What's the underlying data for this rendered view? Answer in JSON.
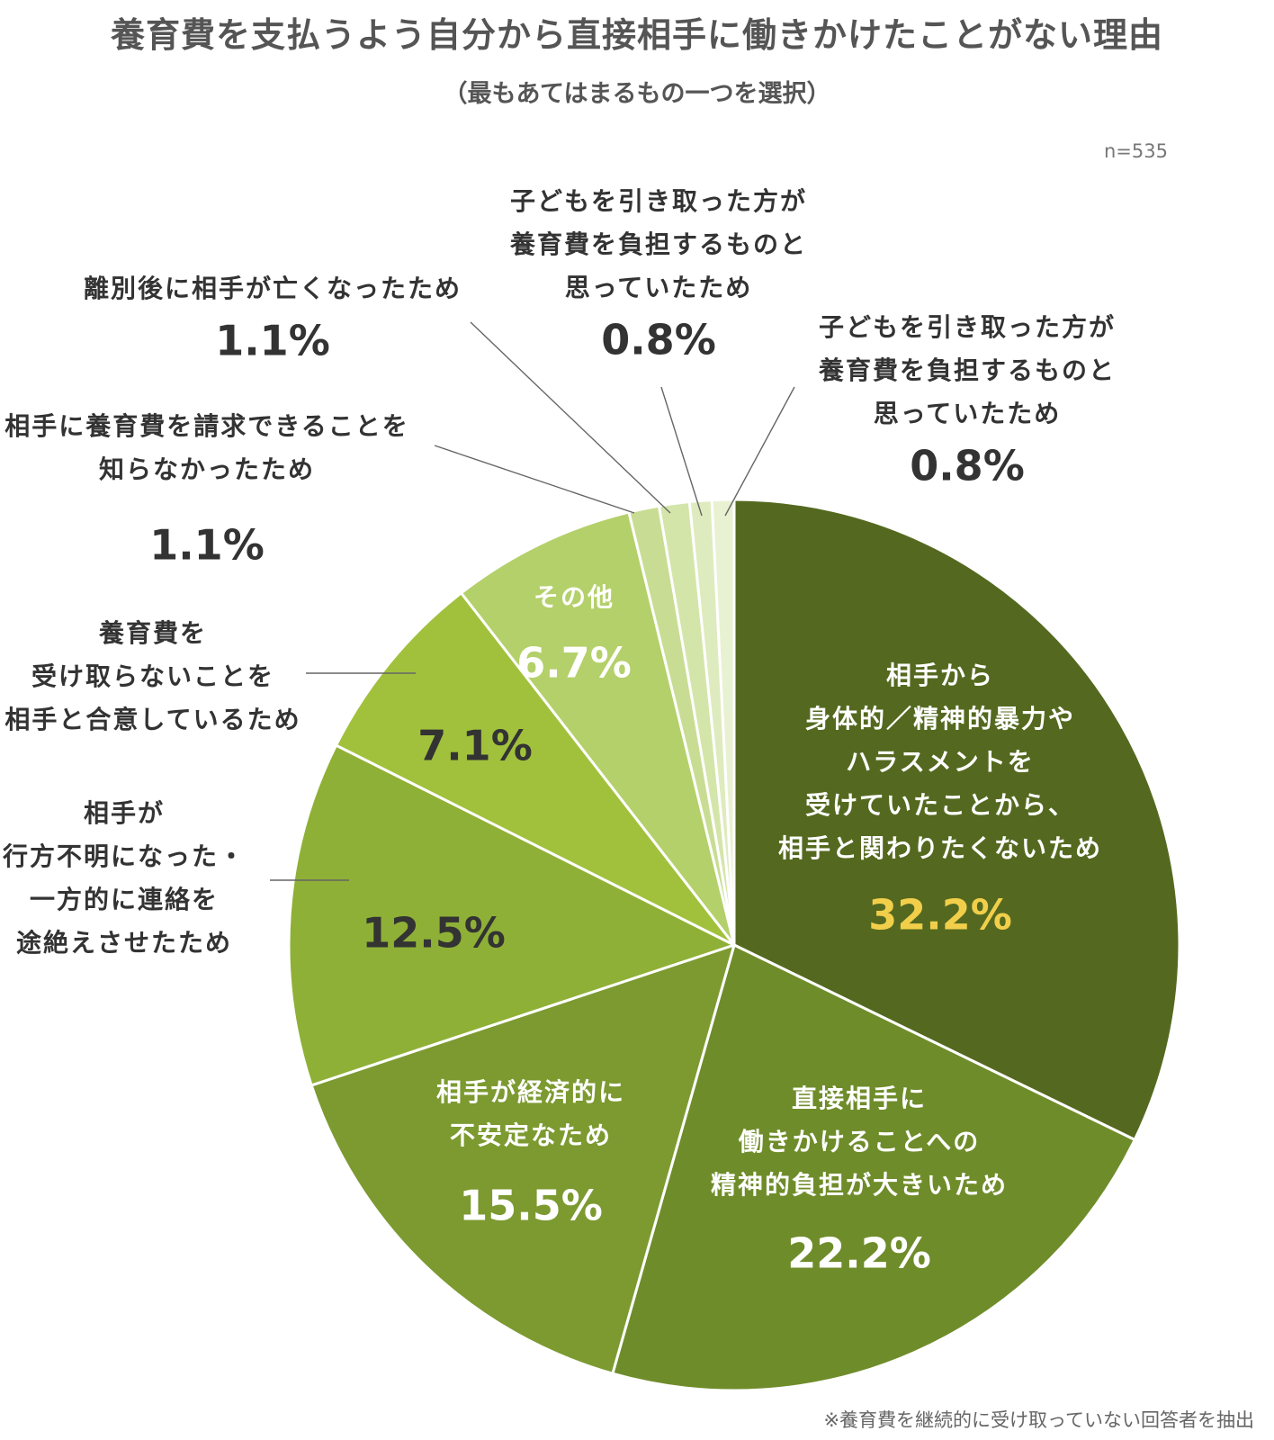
{
  "title": "養育費を支払うよう自分から直接相手に働きかけたことがない理由",
  "subtitle": "（最もあてはまるもの一つを選択）",
  "sample_size": "n=535",
  "footnote": "※養育費を継続的に受け取っていない回答者を抽出",
  "colors": {
    "highlight_value": "#f2cf4a",
    "outside_text": "#333333",
    "inside_text": "#ffffff",
    "leader_line": "#666666",
    "separator": "#ffffff"
  },
  "chart_data": {
    "type": "pie",
    "start_angle": "12 o'clock",
    "direction": "clockwise",
    "slices": [
      {
        "name": "相手から身体的／精神的暴力やハラスメントを受けていたことから、相手と関わりたくないため",
        "label_lines": [
          "相手から",
          "身体的／精神的暴力や",
          "ハラスメントを",
          "受けていたことから、",
          "相手と関わりたくないため"
        ],
        "value": 32.2,
        "value_label": "32.2%",
        "color": "#54691f",
        "label_position": "inside",
        "value_highlight": true
      },
      {
        "name": "直接相手に働きかけることへの精神的負担が大きいため",
        "label_lines": [
          "直接相手に",
          "働きかけることへの",
          "精神的負担が大きいため"
        ],
        "value": 22.2,
        "value_label": "22.2%",
        "color": "#6f8c2a",
        "label_position": "inside"
      },
      {
        "name": "相手が経済的に不安定なため",
        "label_lines": [
          "相手が経済的に",
          "不安定なため"
        ],
        "value": 15.5,
        "value_label": "15.5%",
        "color": "#7c9a30",
        "label_position": "inside"
      },
      {
        "name": "相手が行方不明になった・一方的に連絡を途絶えさせたため",
        "label_lines": [
          "相手が",
          "行方不明になった・",
          "一方的に連絡を",
          "途絶えさせたため"
        ],
        "value": 12.5,
        "value_label": "12.5%",
        "color": "#8fb037",
        "label_position": "outside-left"
      },
      {
        "name": "養育費を受け取らないことを相手と合意しているため",
        "label_lines": [
          "養育費を",
          "受け取らないことを",
          "相手と合意しているため"
        ],
        "value": 7.1,
        "value_label": "7.1%",
        "color": "#a1c13c",
        "label_position": "outside-left"
      },
      {
        "name": "その他",
        "label_lines": [
          "その他"
        ],
        "value": 6.7,
        "value_label": "6.7%",
        "color": "#b4d06a",
        "label_position": "inside"
      },
      {
        "name": "相手に養育費を請求できることを知らなかったため",
        "label_lines": [
          "相手に養育費を請求できることを",
          "知らなかったため"
        ],
        "value": 1.1,
        "value_label": "1.1%",
        "color": "#c8dd93",
        "label_position": "callout"
      },
      {
        "name": "離別後に相手が亡くなったため",
        "label_lines": [
          "離別後に相手が亡くなったため"
        ],
        "value": 1.1,
        "value_label": "1.1%",
        "color": "#d4e5aa",
        "label_position": "callout"
      },
      {
        "name": "子どもを引き取った方が養育費を負担するものと思っていたため",
        "label_lines": [
          "子どもを引き取った方が",
          "養育費を負担するものと",
          "思っていたため"
        ],
        "value": 0.8,
        "value_label": "0.8%",
        "color": "#deebbe",
        "label_position": "callout"
      },
      {
        "name": "子どもを引き取った方が養育費を負担するものと思っていたため",
        "label_lines": [
          "子どもを引き取った方が",
          "養育費を負担するものと",
          "思っていたため"
        ],
        "value": 0.8,
        "value_label": "0.8%",
        "color": "#e8f1d2",
        "label_position": "callout"
      }
    ]
  }
}
